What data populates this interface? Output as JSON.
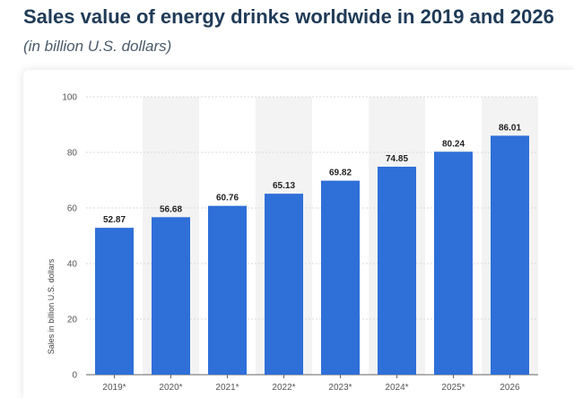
{
  "header": {
    "title": "Sales value of energy drinks worldwide in 2019 and 2026",
    "subtitle": "(in billion U.S. dollars)"
  },
  "chart_data": {
    "type": "bar",
    "categories": [
      "2019*",
      "2020*",
      "2021*",
      "2022*",
      "2023*",
      "2024*",
      "2025*",
      "2026"
    ],
    "values": [
      52.87,
      56.68,
      60.76,
      65.13,
      69.82,
      74.85,
      80.24,
      86.01
    ],
    "value_labels": [
      "52.87",
      "56.68",
      "60.76",
      "65.13",
      "69.82",
      "74.85",
      "80.24",
      "86.01"
    ],
    "title": "Sales value of energy drinks worldwide in 2019 and 2026",
    "subtitle": "(in billion U.S. dollars)",
    "xlabel": "",
    "ylabel": "Sales in billion U.S. dollars",
    "ylim": [
      0,
      100
    ],
    "yticks": [
      0,
      20,
      40,
      60,
      80,
      100
    ],
    "grid": true,
    "bar_color": "#2f6fd8",
    "band_color": "#f3f3f3",
    "legend": "none"
  }
}
